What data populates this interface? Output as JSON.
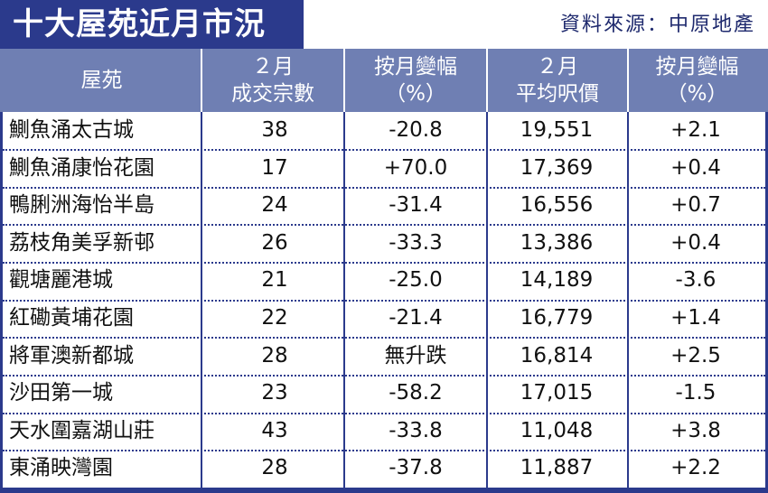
{
  "title": "十大屋苑近月市況",
  "source": "資料來源：中原地產",
  "colors": {
    "navy": "#2b3a8c",
    "header_bg": "#6f7fb3"
  },
  "headers": [
    {
      "line1": "屋苑",
      "line2": ""
    },
    {
      "line1": "２月",
      "line2": "成交宗數"
    },
    {
      "line1": "按月變幅",
      "line2": "（%）"
    },
    {
      "line1": "２月",
      "line2": "平均呎價"
    },
    {
      "line1": "按月變幅",
      "line2": "（%）"
    }
  ],
  "rows": [
    {
      "estate": "鰂魚涌太古城",
      "transactions": "38",
      "txn_change": "-20.8",
      "avg_price": "19,551",
      "price_change": "+2.1"
    },
    {
      "estate": "鰂魚涌康怡花園",
      "transactions": "17",
      "txn_change": "+70.0",
      "avg_price": "17,369",
      "price_change": "+0.4"
    },
    {
      "estate": "鴨脷洲海怡半島",
      "transactions": "24",
      "txn_change": "-31.4",
      "avg_price": "16,556",
      "price_change": "+0.7"
    },
    {
      "estate": "荔枝角美孚新邨",
      "transactions": "26",
      "txn_change": "-33.3",
      "avg_price": "13,386",
      "price_change": "+0.4"
    },
    {
      "estate": "觀塘麗港城",
      "transactions": "21",
      "txn_change": "-25.0",
      "avg_price": "14,189",
      "price_change": "-3.6"
    },
    {
      "estate": "紅磡黃埔花園",
      "transactions": "22",
      "txn_change": "-21.4",
      "avg_price": "16,779",
      "price_change": "+1.4"
    },
    {
      "estate": "將軍澳新都城",
      "transactions": "28",
      "txn_change": "無升跌",
      "avg_price": "16,814",
      "price_change": "+2.5"
    },
    {
      "estate": "沙田第一城",
      "transactions": "23",
      "txn_change": "-58.2",
      "avg_price": "17,015",
      "price_change": "-1.5"
    },
    {
      "estate": "天水圍嘉湖山莊",
      "transactions": "43",
      "txn_change": "-33.8",
      "avg_price": "11,048",
      "price_change": "+3.8"
    },
    {
      "estate": "東涌映灣園",
      "transactions": "28",
      "txn_change": "-37.8",
      "avg_price": "11,887",
      "price_change": "+2.2"
    }
  ]
}
